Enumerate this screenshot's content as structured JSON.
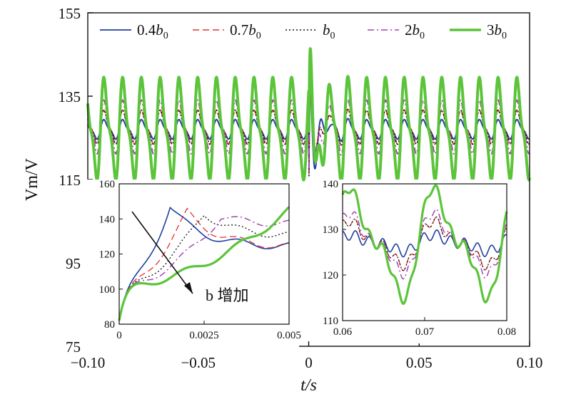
{
  "chart_data": {
    "type": "line",
    "xlabel": "t/s",
    "ylabel": "Vm/V",
    "xlim": [
      -0.1,
      0.1
    ],
    "ylim": [
      75,
      155
    ],
    "x_ticks": [
      "−0.10",
      "−0.05",
      "0",
      "0.05",
      "0.10"
    ],
    "y_ticks": [
      "155",
      "135",
      "115",
      "95",
      "75"
    ],
    "grid": false,
    "legend": "top",
    "series": [
      {
        "name": "0.4b0",
        "color": "#2040a0",
        "dash": "solid",
        "period": 0.0085,
        "amp": 2.0,
        "mean": 127.0,
        "peak": 147,
        "width": 2
      },
      {
        "name": "0.7b0",
        "color": "#e03030",
        "dash": "dashed",
        "period": 0.0085,
        "amp": 3.5,
        "mean": 127.5,
        "peak": 142,
        "width": 1.6
      },
      {
        "name": "b0",
        "color": "#111111",
        "dash": "dotted",
        "period": 0.0085,
        "amp": 3.5,
        "mean": 127.5,
        "peak": 141,
        "width": 1.6
      },
      {
        "name": "2b0",
        "color": "#a040b0",
        "dash": "dashdot",
        "period": 0.0085,
        "amp": 5.5,
        "mean": 127.5,
        "peak": 140,
        "width": 1.8
      },
      {
        "name": "3b0",
        "color": "#5cc43a",
        "dash": "solid",
        "period": 0.0085,
        "amp": 10.5,
        "mean": 127.0,
        "peak": 145,
        "width": 4
      }
    ],
    "insets": [
      {
        "xlim": [
          0,
          0.005
        ],
        "ylim": [
          80,
          160
        ],
        "x_ticks": [
          "0",
          "0.0025",
          "0.005"
        ],
        "y_ticks": [
          "160",
          "140",
          "120",
          "100",
          "80"
        ],
        "annotation": "b 增加"
      },
      {
        "xlim": [
          0.06,
          0.08
        ],
        "ylim": [
          110,
          140
        ],
        "x_ticks": [
          "0.06",
          "0.07",
          "0.08"
        ],
        "y_ticks": [
          "140",
          "130",
          "120",
          "110"
        ]
      }
    ]
  },
  "legend_items": [
    {
      "label": "0.4",
      "sym": "b",
      "sub": "0"
    },
    {
      "label": "0.7",
      "sym": "b",
      "sub": "0"
    },
    {
      "label": "",
      "sym": "b",
      "sub": "0"
    },
    {
      "label": "2",
      "sym": "b",
      "sub": "0"
    },
    {
      "label": "3",
      "sym": "b",
      "sub": "0"
    }
  ]
}
